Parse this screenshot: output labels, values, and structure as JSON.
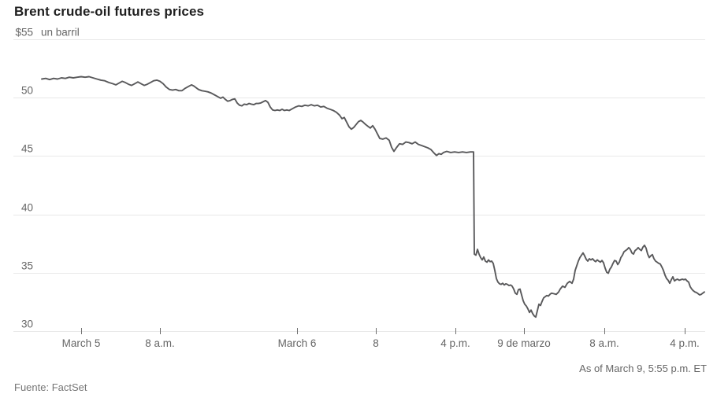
{
  "colors": {
    "line": "#59595b",
    "grid": "#e8e8e8",
    "title": "#1f1f1f",
    "label": "#666666",
    "source": "#767676",
    "tick": "#6f6f6f",
    "background": "#ffffff"
  },
  "chart_data": {
    "type": "line",
    "title": "Brent crude-oil futures prices",
    "series_name": "Brent crude-oil futures price, dollars per barrel",
    "source": "Fuente: FactSet",
    "as_of": "As of March 9, 5:55 p.m. ET",
    "y_axis": {
      "unit_label": "un barril",
      "range": [
        30,
        55
      ],
      "ticks": [
        55,
        50,
        45,
        40,
        35,
        30
      ],
      "tick_labels": [
        "$55",
        "50",
        "45",
        "40",
        "35",
        "30"
      ]
    },
    "x_axis": {
      "note": "time axis is nonlinear (trading gaps compressed); pos = plot x position, px",
      "ticks": [
        {
          "label": "March 5",
          "pos": 103
        },
        {
          "label": "8 a.m.",
          "pos": 203
        },
        {
          "label": "March 6",
          "pos": 377
        },
        {
          "label": "8",
          "pos": 477
        },
        {
          "label": "4 p.m.",
          "pos": 578
        },
        {
          "label": "9 de marzo",
          "pos": 665
        },
        {
          "label": "8 a.m.",
          "pos": 767
        },
        {
          "label": "4 p.m.",
          "pos": 869
        }
      ]
    },
    "points": [
      [
        53,
        51.6
      ],
      [
        58,
        51.65
      ],
      [
        63,
        51.55
      ],
      [
        68,
        51.65
      ],
      [
        73,
        51.6
      ],
      [
        78,
        51.7
      ],
      [
        83,
        51.65
      ],
      [
        88,
        51.75
      ],
      [
        93,
        51.7
      ],
      [
        98,
        51.75
      ],
      [
        103,
        51.8
      ],
      [
        108,
        51.75
      ],
      [
        113,
        51.8
      ],
      [
        118,
        51.7
      ],
      [
        123,
        51.6
      ],
      [
        128,
        51.5
      ],
      [
        133,
        51.45
      ],
      [
        138,
        51.3
      ],
      [
        143,
        51.2
      ],
      [
        147,
        51.1
      ],
      [
        151,
        51.25
      ],
      [
        155,
        51.4
      ],
      [
        159,
        51.3
      ],
      [
        163,
        51.15
      ],
      [
        167,
        51.05
      ],
      [
        171,
        51.2
      ],
      [
        175,
        51.35
      ],
      [
        179,
        51.2
      ],
      [
        183,
        51.05
      ],
      [
        187,
        51.15
      ],
      [
        191,
        51.3
      ],
      [
        195,
        51.45
      ],
      [
        199,
        51.5
      ],
      [
        203,
        51.4
      ],
      [
        207,
        51.2
      ],
      [
        211,
        50.9
      ],
      [
        215,
        50.7
      ],
      [
        219,
        50.65
      ],
      [
        223,
        50.7
      ],
      [
        227,
        50.6
      ],
      [
        231,
        50.6
      ],
      [
        235,
        50.8
      ],
      [
        239,
        50.95
      ],
      [
        243,
        51.1
      ],
      [
        246,
        51.0
      ],
      [
        249,
        50.85
      ],
      [
        252,
        50.7
      ],
      [
        256,
        50.6
      ],
      [
        260,
        50.55
      ],
      [
        264,
        50.5
      ],
      [
        268,
        50.4
      ],
      [
        272,
        50.25
      ],
      [
        276,
        50.1
      ],
      [
        280,
        49.95
      ],
      [
        283,
        50.05
      ],
      [
        286,
        49.85
      ],
      [
        289,
        49.7
      ],
      [
        292,
        49.75
      ],
      [
        295,
        49.85
      ],
      [
        298,
        49.9
      ],
      [
        301,
        49.55
      ],
      [
        304,
        49.35
      ],
      [
        307,
        49.3
      ],
      [
        310,
        49.45
      ],
      [
        313,
        49.4
      ],
      [
        316,
        49.5
      ],
      [
        319,
        49.45
      ],
      [
        322,
        49.4
      ],
      [
        325,
        49.5
      ],
      [
        328,
        49.5
      ],
      [
        331,
        49.55
      ],
      [
        334,
        49.65
      ],
      [
        337,
        49.75
      ],
      [
        340,
        49.6
      ],
      [
        343,
        49.2
      ],
      [
        346,
        48.95
      ],
      [
        349,
        48.9
      ],
      [
        352,
        48.95
      ],
      [
        355,
        48.9
      ],
      [
        358,
        49.0
      ],
      [
        361,
        48.9
      ],
      [
        364,
        48.95
      ],
      [
        367,
        48.9
      ],
      [
        371,
        49.05
      ],
      [
        375,
        49.2
      ],
      [
        379,
        49.3
      ],
      [
        383,
        49.25
      ],
      [
        387,
        49.35
      ],
      [
        391,
        49.3
      ],
      [
        395,
        49.4
      ],
      [
        399,
        49.3
      ],
      [
        403,
        49.35
      ],
      [
        407,
        49.2
      ],
      [
        411,
        49.25
      ],
      [
        415,
        49.1
      ],
      [
        419,
        49.0
      ],
      [
        423,
        48.9
      ],
      [
        427,
        48.75
      ],
      [
        431,
        48.5
      ],
      [
        434,
        48.2
      ],
      [
        437,
        48.3
      ],
      [
        440,
        47.9
      ],
      [
        443,
        47.5
      ],
      [
        446,
        47.3
      ],
      [
        449,
        47.45
      ],
      [
        452,
        47.7
      ],
      [
        455,
        47.95
      ],
      [
        458,
        48.05
      ],
      [
        461,
        47.9
      ],
      [
        464,
        47.7
      ],
      [
        467,
        47.55
      ],
      [
        470,
        47.4
      ],
      [
        473,
        47.6
      ],
      [
        476,
        47.3
      ],
      [
        479,
        46.9
      ],
      [
        482,
        46.5
      ],
      [
        486,
        46.45
      ],
      [
        490,
        46.55
      ],
      [
        494,
        46.35
      ],
      [
        497,
        45.75
      ],
      [
        500,
        45.4
      ],
      [
        503,
        45.7
      ],
      [
        507,
        46.05
      ],
      [
        511,
        46.0
      ],
      [
        515,
        46.2
      ],
      [
        519,
        46.15
      ],
      [
        523,
        46.05
      ],
      [
        527,
        46.2
      ],
      [
        531,
        46.0
      ],
      [
        535,
        45.9
      ],
      [
        539,
        45.8
      ],
      [
        543,
        45.7
      ],
      [
        547,
        45.55
      ],
      [
        551,
        45.25
      ],
      [
        554,
        45.05
      ],
      [
        557,
        45.2
      ],
      [
        560,
        45.15
      ],
      [
        563,
        45.3
      ],
      [
        567,
        45.4
      ],
      [
        572,
        45.3
      ],
      [
        577,
        45.35
      ],
      [
        582,
        45.3
      ],
      [
        587,
        45.35
      ],
      [
        592,
        45.3
      ],
      [
        597,
        45.35
      ],
      [
        601,
        45.35
      ],
      [
        602,
        36.6
      ],
      [
        604,
        36.5
      ],
      [
        606,
        37.0
      ],
      [
        608,
        36.6
      ],
      [
        610,
        36.3
      ],
      [
        612,
        36.1
      ],
      [
        614,
        36.35
      ],
      [
        616,
        36.0
      ],
      [
        618,
        35.9
      ],
      [
        620,
        36.1
      ],
      [
        622,
        35.95
      ],
      [
        624,
        36.0
      ],
      [
        626,
        35.8
      ],
      [
        628,
        35.2
      ],
      [
        630,
        34.5
      ],
      [
        632,
        34.2
      ],
      [
        634,
        34.05
      ],
      [
        636,
        34.0
      ],
      [
        638,
        34.1
      ],
      [
        640,
        33.95
      ],
      [
        642,
        34.05
      ],
      [
        644,
        34.0
      ],
      [
        646,
        33.9
      ],
      [
        648,
        33.95
      ],
      [
        650,
        33.85
      ],
      [
        652,
        33.6
      ],
      [
        654,
        33.25
      ],
      [
        656,
        33.15
      ],
      [
        658,
        33.55
      ],
      [
        660,
        33.6
      ],
      [
        662,
        33.1
      ],
      [
        664,
        32.6
      ],
      [
        666,
        32.3
      ],
      [
        668,
        32.15
      ],
      [
        670,
        31.9
      ],
      [
        672,
        31.6
      ],
      [
        674,
        31.8
      ],
      [
        676,
        31.5
      ],
      [
        678,
        31.3
      ],
      [
        680,
        31.2
      ],
      [
        682,
        31.75
      ],
      [
        684,
        32.3
      ],
      [
        686,
        32.2
      ],
      [
        688,
        32.55
      ],
      [
        690,
        32.85
      ],
      [
        692,
        32.95
      ],
      [
        694,
        33.05
      ],
      [
        696,
        33.0
      ],
      [
        698,
        33.15
      ],
      [
        700,
        33.25
      ],
      [
        703,
        33.2
      ],
      [
        706,
        33.15
      ],
      [
        709,
        33.35
      ],
      [
        711,
        33.6
      ],
      [
        714,
        33.85
      ],
      [
        717,
        33.75
      ],
      [
        720,
        34.1
      ],
      [
        723,
        34.25
      ],
      [
        726,
        34.1
      ],
      [
        728,
        34.45
      ],
      [
        730,
        35.2
      ],
      [
        732,
        35.6
      ],
      [
        734,
        36.0
      ],
      [
        736,
        36.3
      ],
      [
        738,
        36.5
      ],
      [
        740,
        36.7
      ],
      [
        742,
        36.45
      ],
      [
        744,
        36.15
      ],
      [
        746,
        36.0
      ],
      [
        748,
        36.2
      ],
      [
        750,
        36.1
      ],
      [
        752,
        36.2
      ],
      [
        754,
        36.05
      ],
      [
        756,
        35.95
      ],
      [
        758,
        36.1
      ],
      [
        760,
        36.0
      ],
      [
        762,
        35.9
      ],
      [
        764,
        36.05
      ],
      [
        766,
        35.85
      ],
      [
        768,
        35.4
      ],
      [
        770,
        35.05
      ],
      [
        772,
        34.95
      ],
      [
        774,
        35.3
      ],
      [
        776,
        35.5
      ],
      [
        778,
        35.8
      ],
      [
        780,
        36.05
      ],
      [
        782,
        36.0
      ],
      [
        784,
        35.7
      ],
      [
        786,
        35.9
      ],
      [
        788,
        36.3
      ],
      [
        790,
        36.5
      ],
      [
        792,
        36.8
      ],
      [
        794,
        36.9
      ],
      [
        796,
        37.0
      ],
      [
        798,
        37.15
      ],
      [
        800,
        37.0
      ],
      [
        802,
        36.7
      ],
      [
        804,
        36.6
      ],
      [
        806,
        36.9
      ],
      [
        808,
        37.0
      ],
      [
        810,
        37.15
      ],
      [
        812,
        37.0
      ],
      [
        814,
        36.9
      ],
      [
        816,
        37.2
      ],
      [
        818,
        37.35
      ],
      [
        820,
        37.1
      ],
      [
        822,
        36.6
      ],
      [
        824,
        36.3
      ],
      [
        826,
        36.45
      ],
      [
        828,
        36.55
      ],
      [
        830,
        36.2
      ],
      [
        832,
        36.0
      ],
      [
        834,
        35.9
      ],
      [
        836,
        35.8
      ],
      [
        838,
        35.75
      ],
      [
        840,
        35.5
      ],
      [
        842,
        35.2
      ],
      [
        844,
        34.8
      ],
      [
        846,
        34.5
      ],
      [
        848,
        34.35
      ],
      [
        850,
        34.1
      ],
      [
        852,
        34.4
      ],
      [
        854,
        34.65
      ],
      [
        856,
        34.3
      ],
      [
        858,
        34.4
      ],
      [
        860,
        34.45
      ],
      [
        862,
        34.35
      ],
      [
        864,
        34.4
      ],
      [
        866,
        34.45
      ],
      [
        868,
        34.4
      ],
      [
        870,
        34.45
      ],
      [
        872,
        34.3
      ],
      [
        874,
        34.2
      ],
      [
        876,
        33.8
      ],
      [
        878,
        33.6
      ],
      [
        880,
        33.45
      ],
      [
        882,
        33.35
      ],
      [
        884,
        33.3
      ],
      [
        886,
        33.2
      ],
      [
        888,
        33.1
      ],
      [
        890,
        33.15
      ],
      [
        892,
        33.25
      ],
      [
        894,
        33.35
      ]
    ]
  }
}
